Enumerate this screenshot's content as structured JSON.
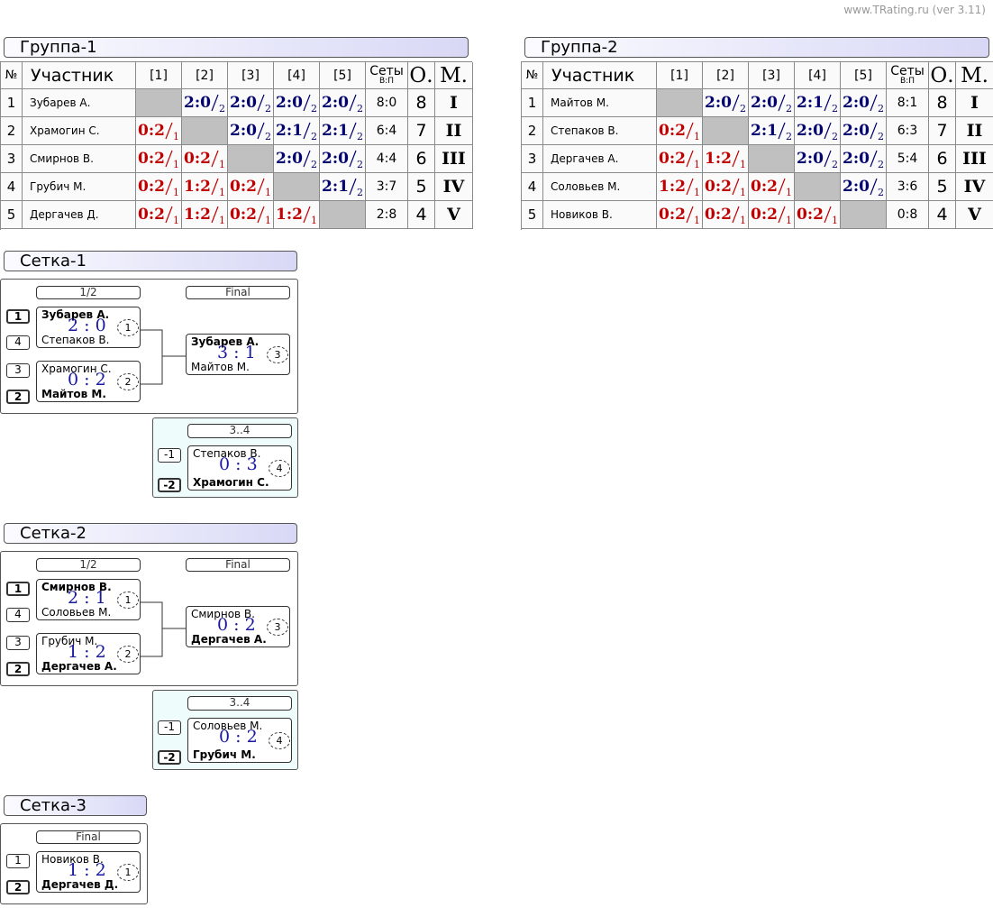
{
  "header": {
    "site": "www.TRating.ru (ver 3.11)"
  },
  "groups": [
    {
      "title": "Группа-1",
      "columns": [
        "№",
        "Участник",
        "[1]",
        "[2]",
        "[3]",
        "[4]",
        "[5]",
        "Сеты",
        "О.",
        "М."
      ],
      "sets_sub": "В:П",
      "rows": [
        {
          "no": 1,
          "name": "Зубарев А.",
          "results": [
            null,
            {
              "score": "2:0",
              "mark": 2
            },
            {
              "score": "2:0",
              "mark": 2
            },
            {
              "score": "2:0",
              "mark": 2
            },
            {
              "score": "2:0",
              "mark": 2
            }
          ],
          "sets": "8:0",
          "points": 8,
          "place": "I"
        },
        {
          "no": 2,
          "name": "Храмогин С.",
          "results": [
            {
              "score": "0:2",
              "mark": 1
            },
            null,
            {
              "score": "2:0",
              "mark": 2
            },
            {
              "score": "2:1",
              "mark": 2
            },
            {
              "score": "2:1",
              "mark": 2
            }
          ],
          "sets": "6:4",
          "points": 7,
          "place": "II"
        },
        {
          "no": 3,
          "name": "Смирнов В.",
          "results": [
            {
              "score": "0:2",
              "mark": 1
            },
            {
              "score": "0:2",
              "mark": 1
            },
            null,
            {
              "score": "2:0",
              "mark": 2
            },
            {
              "score": "2:0",
              "mark": 2
            }
          ],
          "sets": "4:4",
          "points": 6,
          "place": "III"
        },
        {
          "no": 4,
          "name": "Грубич М.",
          "results": [
            {
              "score": "0:2",
              "mark": 1
            },
            {
              "score": "1:2",
              "mark": 1
            },
            {
              "score": "0:2",
              "mark": 1
            },
            null,
            {
              "score": "2:1",
              "mark": 2
            }
          ],
          "sets": "3:7",
          "points": 5,
          "place": "IV"
        },
        {
          "no": 5,
          "name": "Дергачев Д.",
          "results": [
            {
              "score": "0:2",
              "mark": 1
            },
            {
              "score": "1:2",
              "mark": 1
            },
            {
              "score": "0:2",
              "mark": 1
            },
            {
              "score": "1:2",
              "mark": 1
            },
            null
          ],
          "sets": "2:8",
          "points": 4,
          "place": "V"
        }
      ]
    },
    {
      "title": "Группа-2",
      "columns": [
        "№",
        "Участник",
        "[1]",
        "[2]",
        "[3]",
        "[4]",
        "[5]",
        "Сеты",
        "О.",
        "М."
      ],
      "sets_sub": "В:П",
      "rows": [
        {
          "no": 1,
          "name": "Майтов М.",
          "results": [
            null,
            {
              "score": "2:0",
              "mark": 2
            },
            {
              "score": "2:0",
              "mark": 2
            },
            {
              "score": "2:1",
              "mark": 2
            },
            {
              "score": "2:0",
              "mark": 2
            }
          ],
          "sets": "8:1",
          "points": 8,
          "place": "I"
        },
        {
          "no": 2,
          "name": "Степаков В.",
          "results": [
            {
              "score": "0:2",
              "mark": 1
            },
            null,
            {
              "score": "2:1",
              "mark": 2
            },
            {
              "score": "2:0",
              "mark": 2
            },
            {
              "score": "2:0",
              "mark": 2
            }
          ],
          "sets": "6:3",
          "points": 7,
          "place": "II"
        },
        {
          "no": 3,
          "name": "Дергачев А.",
          "results": [
            {
              "score": "0:2",
              "mark": 1
            },
            {
              "score": "1:2",
              "mark": 1
            },
            null,
            {
              "score": "2:0",
              "mark": 2
            },
            {
              "score": "2:0",
              "mark": 2
            }
          ],
          "sets": "5:4",
          "points": 6,
          "place": "III"
        },
        {
          "no": 4,
          "name": "Соловьев М.",
          "results": [
            {
              "score": "1:2",
              "mark": 1
            },
            {
              "score": "0:2",
              "mark": 1
            },
            {
              "score": "0:2",
              "mark": 1
            },
            null,
            {
              "score": "2:0",
              "mark": 2
            }
          ],
          "sets": "3:6",
          "points": 5,
          "place": "IV"
        },
        {
          "no": 5,
          "name": "Новиков В.",
          "results": [
            {
              "score": "0:2",
              "mark": 1
            },
            {
              "score": "0:2",
              "mark": 1
            },
            {
              "score": "0:2",
              "mark": 1
            },
            {
              "score": "0:2",
              "mark": 1
            },
            null
          ],
          "sets": "0:8",
          "points": 4,
          "place": "V"
        }
      ]
    }
  ],
  "brackets": [
    {
      "title": "Сетка-1",
      "rounds": [
        "1/2",
        "Final"
      ],
      "matches": [
        {
          "top": {
            "seed": "1",
            "name": "Зубарев А."
          },
          "bottom": {
            "seed": "4",
            "name": "Степаков В."
          },
          "score": "2 : 0",
          "no": "1"
        },
        {
          "top": {
            "seed": "3",
            "name": "Храмогин С."
          },
          "bottom": {
            "seed": "2",
            "name": "Майтов М."
          },
          "score": "0 : 2",
          "no": "2"
        }
      ],
      "final": {
        "top": {
          "name": "Зубарев А."
        },
        "bottom": {
          "name": "Майтов М."
        },
        "score": "3 : 1",
        "no": "3"
      },
      "third": {
        "label": "3..4",
        "match": {
          "top": {
            "seed": "-1",
            "name": "Степаков В."
          },
          "bottom": {
            "seed": "-2",
            "name": "Храмогин С."
          },
          "score": "0 : 3",
          "no": "4"
        }
      }
    },
    {
      "title": "Сетка-2",
      "rounds": [
        "1/2",
        "Final"
      ],
      "matches": [
        {
          "top": {
            "seed": "1",
            "name": "Смирнов В."
          },
          "bottom": {
            "seed": "4",
            "name": "Соловьев М."
          },
          "score": "2 : 1",
          "no": "1"
        },
        {
          "top": {
            "seed": "3",
            "name": "Грубич М."
          },
          "bottom": {
            "seed": "2",
            "name": "Дергачев А."
          },
          "score": "1 : 2",
          "no": "2"
        }
      ],
      "final": {
        "top": {
          "name": "Смирнов В."
        },
        "bottom": {
          "name": "Дергачев А."
        },
        "score": "0 : 2",
        "no": "3"
      },
      "third": {
        "label": "3..4",
        "match": {
          "top": {
            "seed": "-1",
            "name": "Соловьев М."
          },
          "bottom": {
            "seed": "-2",
            "name": "Грубич М."
          },
          "score": "0 : 2",
          "no": "4"
        }
      }
    },
    {
      "title": "Сетка-3",
      "rounds": [
        "Final"
      ],
      "matches": [
        {
          "top": {
            "seed": "1",
            "name": "Новиков В."
          },
          "bottom": {
            "seed": "2",
            "name": "Дергачев Д."
          },
          "score": "1 : 2",
          "no": "1"
        }
      ]
    }
  ]
}
